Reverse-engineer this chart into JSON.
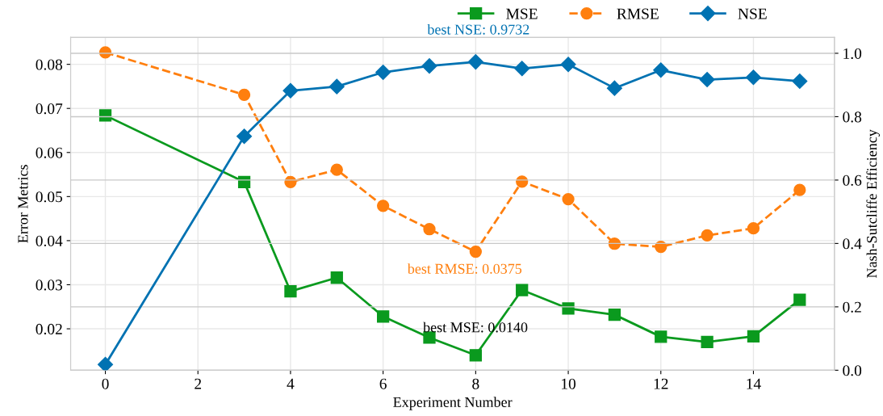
{
  "chart_data": {
    "type": "line",
    "xlabel": "Experiment Number",
    "ylabel": "Error Metrics",
    "y2label": "Nash-Sutcliffe Efficiency",
    "x": [
      0,
      3,
      4,
      5,
      6,
      7,
      8,
      9,
      10,
      11,
      12,
      13,
      14,
      15
    ],
    "series": [
      {
        "name": "MSE",
        "color": "#0a9a1e",
        "marker": "square",
        "line_style": "solid",
        "values": [
          0.0684,
          0.0533,
          0.0285,
          0.0316,
          0.0228,
          0.018,
          0.014,
          0.0288,
          0.0246,
          0.0232,
          0.0182,
          0.017,
          0.0183,
          0.0266
        ]
      },
      {
        "name": "RMSE",
        "color": "#ff7f0e",
        "marker": "circle",
        "line_style": "dashed",
        "values": [
          0.0827,
          0.0731,
          0.0533,
          0.0561,
          0.0479,
          0.0426,
          0.0375,
          0.0534,
          0.0494,
          0.0393,
          0.0386,
          0.0412,
          0.0428,
          0.0515
        ]
      },
      {
        "name": "NSE",
        "color": "#0072b2",
        "marker": "diamond",
        "line_style": "solid",
        "axis": "y2",
        "values": [
          0.018,
          0.738,
          0.882,
          0.895,
          0.94,
          0.96,
          0.973,
          0.952,
          0.965,
          0.89,
          0.947,
          0.917,
          0.924,
          0.912
        ]
      }
    ],
    "annotations": [
      "best MSE: 0.0140",
      "best RMSE: 0.0375",
      "best NSE: 0.9732"
    ],
    "xlim": [
      -0.75,
      15.75
    ],
    "xticks": [
      0,
      2,
      4,
      6,
      8,
      10,
      12,
      14
    ],
    "ylim": [
      0.0106,
      0.0861
    ],
    "yticks": [
      0.02,
      0.03,
      0.04,
      0.05,
      0.06,
      0.07,
      0.08
    ],
    "y2lim": [
      0,
      1.05
    ],
    "y2ticks": [
      {
        "value": 0,
        "label": "0.0"
      },
      0.2,
      0.4,
      0.6,
      0.8,
      {
        "value": 1,
        "label": "1.0"
      }
    ],
    "grid": true,
    "legend": "top right"
  }
}
